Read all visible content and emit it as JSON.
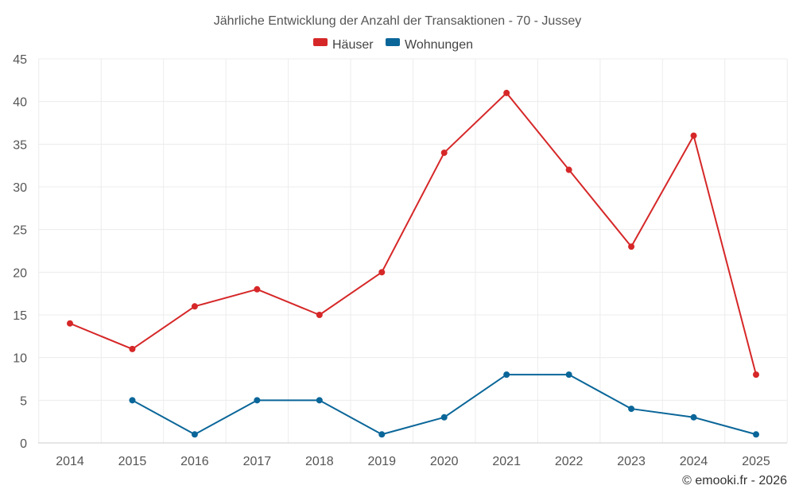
{
  "chart_data": {
    "type": "line",
    "title": "Jährliche Entwicklung der Anzahl der Transaktionen - 70 - Jussey",
    "categories": [
      "2014",
      "2015",
      "2016",
      "2017",
      "2018",
      "2019",
      "2020",
      "2021",
      "2022",
      "2023",
      "2024",
      "2025"
    ],
    "series": [
      {
        "name": "Häuser",
        "color": "#d62728",
        "values": [
          14,
          11,
          16,
          18,
          15,
          20,
          34,
          41,
          32,
          23,
          36,
          8
        ]
      },
      {
        "name": "Wohnungen",
        "color": "#0a6699",
        "values": [
          null,
          5,
          1,
          5,
          5,
          1,
          3,
          8,
          8,
          4,
          3,
          1
        ]
      }
    ],
    "ylim": [
      0,
      45
    ],
    "yticks": [
      0,
      5,
      10,
      15,
      20,
      25,
      30,
      35,
      40,
      45
    ],
    "xlabel": "",
    "ylabel": "",
    "grid": true,
    "legend_position": "top-center"
  },
  "credit": "© emooki.fr - 2026"
}
